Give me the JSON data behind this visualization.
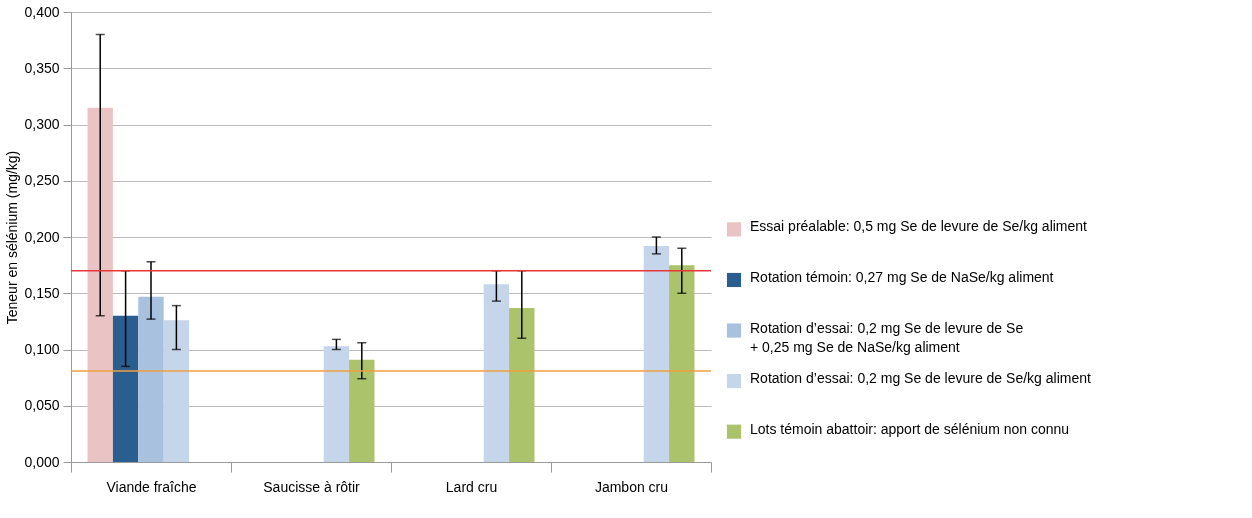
{
  "chart_data": {
    "type": "bar",
    "ylabel": "Teneur en sélénium (mg/kg)",
    "categories": [
      "Viande fraîche",
      "Saucisse à rôtir",
      "Lard cru",
      "Jambon cru"
    ],
    "ylim": [
      0,
      0.4
    ],
    "yticks": [
      {
        "value": 0,
        "label": "0,000"
      },
      {
        "value": 0.05,
        "label": "0,050"
      },
      {
        "value": 0.1,
        "label": "0,100"
      },
      {
        "value": 0.15,
        "label": "0,150"
      },
      {
        "value": 0.2,
        "label": "0,200"
      },
      {
        "value": 0.25,
        "label": "0,250"
      },
      {
        "value": 0.3,
        "label": "0,300"
      },
      {
        "value": 0.35,
        "label": "0,350"
      },
      {
        "value": 0.4,
        "label": "0,400"
      }
    ],
    "grid": "y",
    "legend": "right",
    "series": [
      {
        "name": "Essai préalable: 0,5 mg Se de levure de Se/kg aliment",
        "color": "#eac4c4",
        "values": [
          0.315,
          null,
          null,
          null
        ],
        "errors": [
          [
            0.13,
            0.38
          ],
          null,
          null,
          null
        ]
      },
      {
        "name": "Rotation témoin: 0,27 mg Se de NaSe/kg aliment",
        "color": "#2a5e8f",
        "values": [
          0.13,
          null,
          null,
          null
        ],
        "errors": [
          [
            0.085,
            0.17
          ],
          null,
          null,
          null
        ]
      },
      {
        "name": "Rotation d’essai: 0,2 mg Se de levure de Se + 0,25 mg Se de NaSe/kg aliment",
        "color": "#a7c1df",
        "values": [
          0.147,
          null,
          null,
          null
        ],
        "errors": [
          [
            0.127,
            0.178
          ],
          null,
          null,
          null
        ]
      },
      {
        "name": "Rotation d’essai: 0,2 mg Se de levure de Se/kg aliment",
        "color": "#c5d5ea",
        "values": [
          0.126,
          0.103,
          0.158,
          0.192
        ],
        "errors": [
          [
            0.1,
            0.139
          ],
          [
            0.1,
            0.109
          ],
          [
            0.143,
            0.17
          ],
          [
            0.185,
            0.2
          ]
        ]
      },
      {
        "name": "Lots témoin abattoir: apport de sélénium non connu",
        "color": "#abc36a",
        "values": [
          null,
          0.091,
          0.137,
          0.175
        ],
        "errors": [
          null,
          [
            0.074,
            0.106
          ],
          [
            0.11,
            0.17
          ],
          [
            0.15,
            0.19
          ]
        ]
      }
    ],
    "ref_lines": [
      {
        "axis": "y",
        "value": 0.17,
        "label": null,
        "color": "#e8373b"
      },
      {
        "axis": "y",
        "value": 0.081,
        "label": null,
        "color": "#f0a040"
      }
    ]
  }
}
